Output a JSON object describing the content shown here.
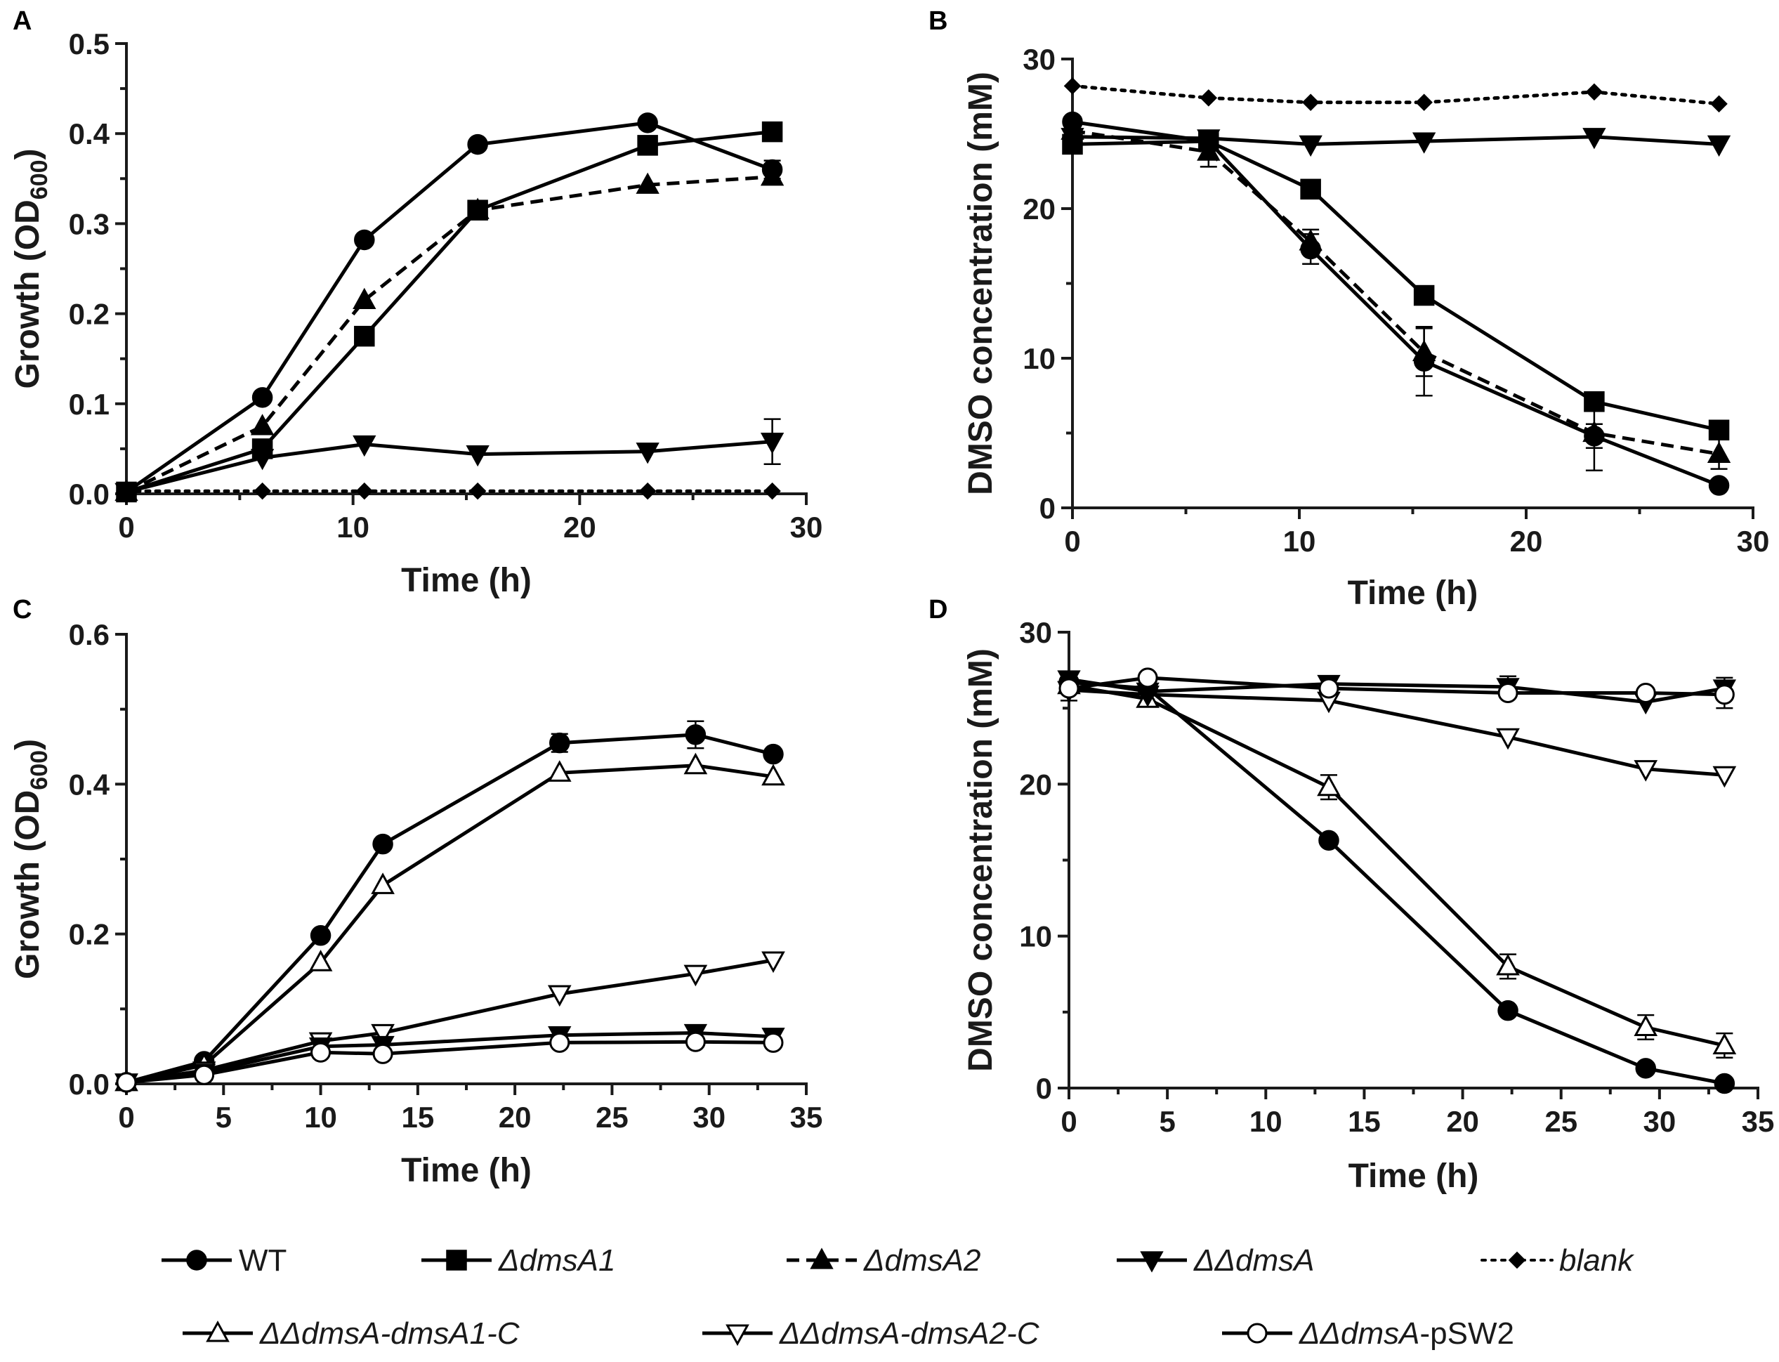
{
  "legend": {
    "row1": [
      {
        "key": "wt",
        "label": "WT",
        "italic": false
      },
      {
        "key": "dmsA1",
        "label": "ΔdmsA1",
        "italic": true
      },
      {
        "key": "dmsA2",
        "label": "ΔdmsA2",
        "italic": true
      },
      {
        "key": "ddmsA",
        "label": "ΔΔdmsA",
        "italic": true
      },
      {
        "key": "blank",
        "label": "blank",
        "italic": true
      }
    ],
    "row2": [
      {
        "key": "c1",
        "label": "ΔΔdmsA-dmsA1-C",
        "italic": true,
        "italic_part": "ΔΔdmsA-dmsA1-C",
        "plain_part": ""
      },
      {
        "key": "c2",
        "label": "ΔΔdmsA-dmsA2-C",
        "italic": true,
        "italic_part": "ΔΔdmsA-dmsA2-C",
        "plain_part": ""
      },
      {
        "key": "pSW2",
        "label": "ΔΔdmsA-pSW2",
        "italic": true,
        "italic_part": "ΔΔdmsA",
        "plain_part": "-pSW2"
      }
    ]
  },
  "styles": {
    "wt": {
      "marker": "circle",
      "fill": "#000000",
      "dash": "solid"
    },
    "dmsA1": {
      "marker": "square",
      "fill": "#000000",
      "dash": "solid"
    },
    "dmsA2": {
      "marker": "triangle-up",
      "fill": "#000000",
      "dash": "dashed"
    },
    "ddmsA": {
      "marker": "triangle-down",
      "fill": "#000000",
      "dash": "solid"
    },
    "blank": {
      "marker": "diamond",
      "fill": "#000000",
      "dash": "dotted"
    },
    "c1": {
      "marker": "triangle-up",
      "fill": "#ffffff",
      "dash": "solid"
    },
    "c2": {
      "marker": "triangle-down",
      "fill": "#ffffff",
      "dash": "solid"
    },
    "pSW2": {
      "marker": "circle",
      "fill": "#ffffff",
      "dash": "solid"
    }
  },
  "chart_data": [
    {
      "panel": "A",
      "type": "line",
      "xlabel": "Time (h)",
      "ylabel": "Growth (OD600)",
      "ylabel_main": "Growth (OD",
      "ylabel_sub": "600",
      "ylabel_end": ")",
      "xlim": [
        0,
        30
      ],
      "ylim": [
        0,
        0.5
      ],
      "xticks": [
        "0",
        "10",
        "20",
        "30"
      ],
      "yticks": [
        "0.0",
        "0.1",
        "0.2",
        "0.3",
        "0.4",
        "0.5"
      ],
      "series": [
        {
          "key": "wt",
          "name": "WT",
          "x": [
            0,
            6,
            10.5,
            15.5,
            23,
            28.5
          ],
          "y": [
            0.002,
            0.107,
            0.282,
            0.388,
            0.412,
            0.36
          ],
          "err": [
            0,
            0,
            0,
            0,
            0,
            0.01
          ]
        },
        {
          "key": "dmsA1",
          "name": "ΔdmsA1",
          "x": [
            0,
            6,
            10.5,
            15.5,
            23,
            28.5
          ],
          "y": [
            0.002,
            0.05,
            0.175,
            0.315,
            0.387,
            0.402
          ],
          "err": [
            0,
            0,
            0,
            0,
            0,
            0
          ]
        },
        {
          "key": "dmsA2",
          "name": "ΔdmsA2",
          "x": [
            0,
            6,
            10.5,
            15.5,
            23,
            28.5
          ],
          "y": [
            0.002,
            0.075,
            0.215,
            0.315,
            0.343,
            0.352
          ],
          "err": [
            0,
            0,
            0,
            0,
            0,
            0.008
          ]
        },
        {
          "key": "ddmsA",
          "name": "ΔΔdmsA",
          "x": [
            0,
            6,
            10.5,
            15.5,
            23,
            28.5
          ],
          "y": [
            0.002,
            0.04,
            0.055,
            0.044,
            0.047,
            0.058
          ],
          "err": [
            0,
            0,
            0,
            0,
            0,
            0.025
          ]
        },
        {
          "key": "blank",
          "name": "blank",
          "x": [
            0,
            6,
            10.5,
            15.5,
            23,
            28.5
          ],
          "y": [
            0.003,
            0.003,
            0.003,
            0.003,
            0.003,
            0.003
          ],
          "err": [
            0,
            0,
            0,
            0,
            0,
            0
          ]
        }
      ]
    },
    {
      "panel": "B",
      "type": "line",
      "xlabel": "Time (h)",
      "ylabel": "DMSO concentration (mM)",
      "ylabel_main": "DMSO concentration (mM)",
      "ylabel_sub": "",
      "ylabel_end": "",
      "xlim": [
        0,
        30
      ],
      "ylim": [
        0,
        30
      ],
      "xticks": [
        "0",
        "10",
        "20",
        "30"
      ],
      "yticks": [
        "0",
        "10",
        "20",
        "30"
      ],
      "series": [
        {
          "key": "wt",
          "name": "WT",
          "x": [
            0,
            6,
            10.5,
            15.5,
            23,
            28.5
          ],
          "y": [
            25.8,
            24.5,
            17.3,
            9.8,
            4.8,
            1.5
          ],
          "err": [
            0,
            0,
            1.0,
            2.3,
            0.8,
            0
          ]
        },
        {
          "key": "dmsA1",
          "name": "ΔdmsA1",
          "x": [
            0,
            6,
            10.5,
            15.5,
            23,
            28.5
          ],
          "y": [
            24.3,
            24.5,
            21.3,
            14.2,
            7.1,
            5.2
          ],
          "err": [
            0,
            0,
            0,
            0,
            0,
            0
          ]
        },
        {
          "key": "dmsA2",
          "name": "ΔdmsA2",
          "x": [
            0,
            6,
            10.5,
            15.5,
            23,
            28.5
          ],
          "y": [
            25.2,
            23.8,
            17.8,
            10.4,
            5.0,
            3.6
          ],
          "err": [
            0,
            1.0,
            0.8,
            1.6,
            2.5,
            1.0
          ]
        },
        {
          "key": "ddmsA",
          "name": "ΔΔdmsA",
          "x": [
            0,
            6,
            10.5,
            15.5,
            23,
            28.5
          ],
          "y": [
            24.8,
            24.7,
            24.3,
            24.5,
            24.8,
            24.3
          ],
          "err": [
            0,
            0,
            0,
            0,
            0,
            0
          ]
        },
        {
          "key": "blank",
          "name": "blank",
          "x": [
            0,
            6,
            10.5,
            15.5,
            23,
            28.5
          ],
          "y": [
            28.2,
            27.4,
            27.1,
            27.1,
            27.8,
            27.0
          ],
          "err": [
            0,
            0,
            0,
            0,
            0,
            0
          ]
        }
      ]
    },
    {
      "panel": "C",
      "type": "line",
      "xlabel": "Time (h)",
      "ylabel": "Growth (OD600)",
      "ylabel_main": "Growth (OD",
      "ylabel_sub": "600",
      "ylabel_end": ")",
      "xlim": [
        0,
        35
      ],
      "ylim": [
        0,
        0.6
      ],
      "xticks": [
        "0",
        "5",
        "10",
        "15",
        "20",
        "25",
        "30",
        "35"
      ],
      "yticks": [
        "0.0",
        "0.2",
        "0.4",
        "0.6"
      ],
      "series": [
        {
          "key": "wt",
          "name": "WT",
          "x": [
            0,
            4,
            10,
            13.2,
            22.3,
            29.3,
            33.3
          ],
          "y": [
            0.002,
            0.03,
            0.198,
            0.32,
            0.455,
            0.466,
            0.44
          ],
          "err": [
            0,
            0,
            0,
            0,
            0.012,
            0.018,
            0
          ]
        },
        {
          "key": "c1",
          "name": "ΔΔdmsA-dmsA1-C",
          "x": [
            0,
            4,
            10,
            13.2,
            22.3,
            29.3,
            33.3
          ],
          "y": [
            0.002,
            0.025,
            0.162,
            0.265,
            0.415,
            0.425,
            0.41
          ],
          "err": [
            0,
            0,
            0,
            0,
            0,
            0,
            0
          ]
        },
        {
          "key": "c2",
          "name": "ΔΔdmsA-dmsA2-C",
          "x": [
            0,
            4,
            10,
            13.2,
            22.3,
            29.3,
            33.3
          ],
          "y": [
            0.002,
            0.018,
            0.057,
            0.068,
            0.12,
            0.147,
            0.165
          ],
          "err": [
            0,
            0,
            0,
            0,
            0,
            0,
            0
          ]
        },
        {
          "key": "ddmsA",
          "name": "ΔΔdmsA",
          "x": [
            0,
            4,
            10,
            13.2,
            22.3,
            29.3,
            33.3
          ],
          "y": [
            0.002,
            0.015,
            0.05,
            0.052,
            0.065,
            0.068,
            0.063
          ],
          "err": [
            0,
            0,
            0,
            0,
            0.008,
            0.008,
            0
          ]
        },
        {
          "key": "pSW2",
          "name": "ΔΔdmsA-pSW2",
          "x": [
            0,
            4,
            10,
            13.2,
            22.3,
            29.3,
            33.3
          ],
          "y": [
            0.002,
            0.012,
            0.042,
            0.04,
            0.055,
            0.056,
            0.055
          ],
          "err": [
            0,
            0,
            0,
            0,
            0,
            0,
            0
          ]
        }
      ]
    },
    {
      "panel": "D",
      "type": "line",
      "xlabel": "Time (h)",
      "ylabel": "DMSO concentration (mM)",
      "ylabel_main": "DMSO concentration (mM)",
      "ylabel_sub": "",
      "ylabel_end": "",
      "xlim": [
        0,
        35
      ],
      "ylim": [
        0,
        30
      ],
      "xticks": [
        "0",
        "5",
        "10",
        "15",
        "20",
        "25",
        "30",
        "35"
      ],
      "yticks": [
        "0",
        "10",
        "20",
        "30"
      ],
      "series": [
        {
          "key": "wt",
          "name": "WT",
          "x": [
            0,
            4,
            13.2,
            22.3,
            29.3,
            33.3
          ],
          "y": [
            26.7,
            26.3,
            16.3,
            5.1,
            1.3,
            0.3
          ],
          "err": [
            0,
            0,
            0,
            0,
            0,
            0
          ]
        },
        {
          "key": "c1",
          "name": "ΔΔdmsA-dmsA1-C",
          "x": [
            0,
            4,
            13.2,
            22.3,
            29.3,
            33.3
          ],
          "y": [
            26.5,
            25.6,
            19.8,
            8.0,
            4.0,
            2.8
          ],
          "err": [
            0,
            0,
            0.8,
            0.8,
            0.8,
            0.8
          ]
        },
        {
          "key": "c2",
          "name": "ΔΔdmsA-dmsA2-C",
          "x": [
            0,
            4,
            13.2,
            22.3,
            29.3,
            33.3
          ],
          "y": [
            26.2,
            25.9,
            25.5,
            23.1,
            21.0,
            20.6
          ],
          "err": [
            0,
            0,
            0,
            0,
            0,
            0
          ]
        },
        {
          "key": "ddmsA",
          "name": "ΔΔdmsA",
          "x": [
            0,
            4,
            13.2,
            22.3,
            29.3,
            33.3
          ],
          "y": [
            26.9,
            26.1,
            26.6,
            26.4,
            25.4,
            26.3
          ],
          "err": [
            0.5,
            0,
            0,
            0.7,
            0,
            0.7
          ]
        },
        {
          "key": "pSW2",
          "name": "ΔΔdmsA-pSW2",
          "x": [
            0,
            4,
            13.2,
            22.3,
            29.3,
            33.3
          ],
          "y": [
            26.3,
            27.0,
            26.3,
            26.0,
            26.0,
            25.9
          ],
          "err": [
            0.8,
            0,
            0,
            0,
            0,
            0.9
          ]
        }
      ]
    }
  ]
}
